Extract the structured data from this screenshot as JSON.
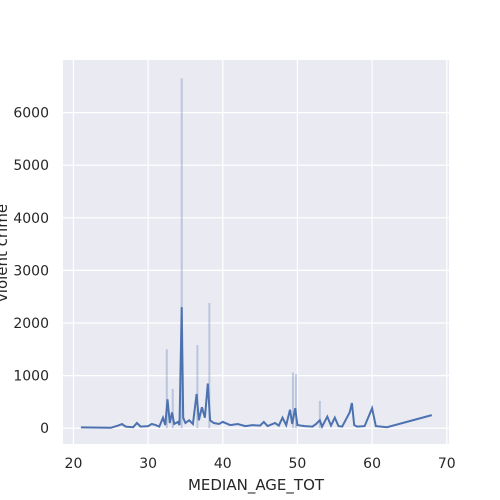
{
  "chart_data": {
    "type": "line",
    "title": "",
    "xlabel": "MEDIAN_AGE_TOT",
    "ylabel": "violent crime",
    "xlim": [
      18.6,
      70.3
    ],
    "ylim": [
      -300,
      7000
    ],
    "xticks": [
      20,
      30,
      40,
      50,
      60,
      70
    ],
    "yticks": [
      0,
      1000,
      2000,
      3000,
      4000,
      5000,
      6000
    ],
    "grid": true,
    "background": "#eaeaf2",
    "grid_color": "#ffffff",
    "line_color": "#4c72b0",
    "series": [
      {
        "points": [
          [
            21.0,
            15
          ],
          [
            25.0,
            8
          ],
          [
            26.0,
            50
          ],
          [
            26.5,
            80
          ],
          [
            27.0,
            30
          ],
          [
            28.0,
            20
          ],
          [
            28.5,
            100
          ],
          [
            29.0,
            30
          ],
          [
            30.0,
            40
          ],
          [
            30.5,
            80
          ],
          [
            31.0,
            60
          ],
          [
            31.5,
            30
          ],
          [
            32.0,
            200
          ],
          [
            32.3,
            60
          ],
          [
            32.6,
            550
          ],
          [
            32.9,
            100
          ],
          [
            33.2,
            300
          ],
          [
            33.5,
            80
          ],
          [
            34.0,
            120
          ],
          [
            34.2,
            60
          ],
          [
            34.5,
            2300
          ],
          [
            34.7,
            200
          ],
          [
            35.0,
            100
          ],
          [
            35.5,
            150
          ],
          [
            36.0,
            80
          ],
          [
            36.5,
            650
          ],
          [
            36.8,
            150
          ],
          [
            37.2,
            400
          ],
          [
            37.6,
            200
          ],
          [
            38.0,
            850
          ],
          [
            38.3,
            150
          ],
          [
            38.8,
            100
          ],
          [
            39.5,
            80
          ],
          [
            40.0,
            120
          ],
          [
            41.0,
            60
          ],
          [
            42.0,
            80
          ],
          [
            43.0,
            40
          ],
          [
            44.0,
            60
          ],
          [
            45.0,
            50
          ],
          [
            45.5,
            120
          ],
          [
            46.0,
            40
          ],
          [
            47.0,
            100
          ],
          [
            47.5,
            50
          ],
          [
            48.0,
            200
          ],
          [
            48.5,
            60
          ],
          [
            49.0,
            350
          ],
          [
            49.3,
            80
          ],
          [
            49.7,
            380
          ],
          [
            50.0,
            60
          ],
          [
            51.0,
            40
          ],
          [
            52.0,
            30
          ],
          [
            52.5,
            80
          ],
          [
            53.0,
            150
          ],
          [
            53.3,
            30
          ],
          [
            54.0,
            220
          ],
          [
            54.5,
            50
          ],
          [
            55.0,
            200
          ],
          [
            55.5,
            40
          ],
          [
            56.0,
            30
          ],
          [
            57.0,
            300
          ],
          [
            57.3,
            480
          ],
          [
            57.6,
            60
          ],
          [
            58.0,
            30
          ],
          [
            59.0,
            40
          ],
          [
            60.0,
            380
          ],
          [
            60.5,
            40
          ],
          [
            62.0,
            20
          ],
          [
            68.0,
            250
          ]
        ]
      }
    ],
    "band": [
      [
        32.5,
        1500
      ],
      [
        33.3,
        750
      ],
      [
        34.5,
        6650
      ],
      [
        36.6,
        1580
      ],
      [
        38.2,
        2380
      ],
      [
        49.4,
        1060
      ],
      [
        49.8,
        1030
      ],
      [
        53.0,
        520
      ]
    ]
  }
}
